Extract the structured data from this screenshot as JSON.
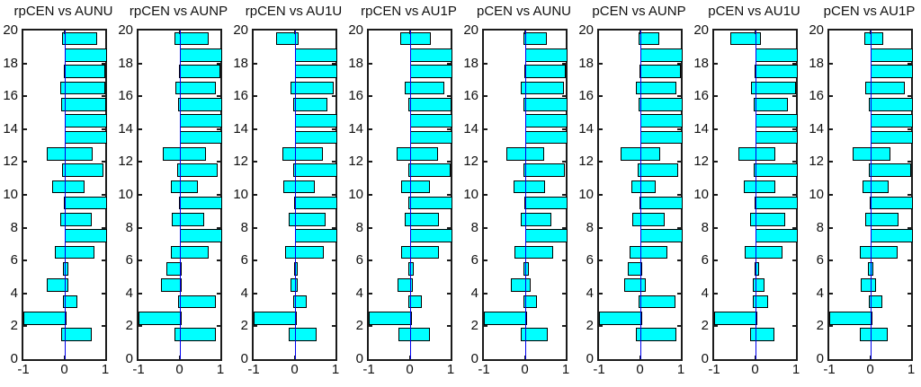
{
  "figure": {
    "background": "#ffffff",
    "bar_fill": "#00ffff",
    "bar_edge": "#000000",
    "zero_line_color": "#0000ee",
    "axis_color": "#1b1b1b"
  },
  "axes": {
    "xlim": [
      -1,
      1
    ],
    "ylim": [
      0,
      20
    ],
    "xticklabels": [
      "-1",
      "0",
      "1"
    ],
    "yticklabels": [
      "0",
      "2",
      "4",
      "6",
      "8",
      "10",
      "12",
      "14",
      "16",
      "18",
      "20"
    ],
    "grid": false,
    "legend": "none"
  },
  "chart_data": [
    {
      "type": "bar",
      "orientation": "horizontal",
      "title": "rpCEN vs AUNU",
      "xlabel": "",
      "ylabel": "",
      "xlim": [
        -1,
        1
      ],
      "ylim": [
        0,
        20
      ],
      "categories": [
        1.5,
        2.5,
        3.5,
        4.5,
        5.5,
        6.5,
        7.5,
        8.5,
        9.5,
        10.5,
        11.5,
        12.5,
        13.5,
        14.5,
        15.5,
        16.5,
        17.5,
        18.5,
        19.5
      ],
      "series": [
        {
          "name": "negative",
          "values": [
            -0.08,
            -1.0,
            -0.03,
            -0.42,
            -0.03,
            -0.22,
            0,
            -0.1,
            -0.02,
            -0.3,
            -0.05,
            -0.42,
            0,
            0,
            -0.07,
            -0.1,
            -0.02,
            0,
            -0.05
          ]
        },
        {
          "name": "positive",
          "values": [
            0.62,
            0,
            0.28,
            0.05,
            0.06,
            0.7,
            1.0,
            0.62,
            1.0,
            0.45,
            0.92,
            0.65,
            1.0,
            1.0,
            0.98,
            0.95,
            0.95,
            1.0,
            0.75
          ]
        }
      ]
    },
    {
      "type": "bar",
      "orientation": "horizontal",
      "title": "rpCEN vs AUNP",
      "xlabel": "",
      "ylabel": "",
      "xlim": [
        -1,
        1
      ],
      "ylim": [
        0,
        20
      ],
      "categories": [
        1.5,
        2.5,
        3.5,
        4.5,
        5.5,
        6.5,
        7.5,
        8.5,
        9.5,
        10.5,
        11.5,
        12.5,
        13.5,
        14.5,
        15.5,
        16.5,
        17.5,
        18.5,
        19.5
      ],
      "series": [
        {
          "name": "negative",
          "values": [
            -0.12,
            -1.0,
            -0.04,
            -0.45,
            -0.32,
            -0.2,
            0,
            -0.18,
            -0.02,
            -0.2,
            -0.05,
            -0.4,
            0,
            0,
            -0.04,
            -0.1,
            -0.02,
            0,
            -0.12
          ]
        },
        {
          "name": "positive",
          "values": [
            0.85,
            0,
            0.85,
            0.02,
            0.02,
            0.68,
            1.0,
            0.55,
            1.0,
            0.4,
            0.9,
            0.6,
            1.0,
            1.0,
            1.0,
            0.85,
            0.95,
            1.0,
            0.68
          ]
        }
      ]
    },
    {
      "type": "bar",
      "orientation": "horizontal",
      "title": "rpCEN vs AU1U",
      "xlabel": "",
      "ylabel": "",
      "xlim": [
        -1,
        1
      ],
      "ylim": [
        0,
        20
      ],
      "categories": [
        1.5,
        2.5,
        3.5,
        4.5,
        5.5,
        6.5,
        7.5,
        8.5,
        9.5,
        10.5,
        11.5,
        12.5,
        13.5,
        14.5,
        15.5,
        16.5,
        17.5,
        18.5,
        19.5
      ],
      "series": [
        {
          "name": "negative",
          "values": [
            -0.15,
            -1.0,
            -0.03,
            -0.1,
            -0.02,
            -0.22,
            0,
            -0.15,
            -0.02,
            -0.28,
            -0.03,
            -0.3,
            0,
            0,
            -0.03,
            -0.1,
            0,
            0,
            -0.45
          ]
        },
        {
          "name": "positive",
          "values": [
            0.5,
            0,
            0.25,
            0.03,
            0.04,
            0.68,
            1.0,
            0.72,
            1.0,
            0.45,
            1.0,
            0.65,
            1.0,
            1.0,
            0.75,
            0.92,
            1.0,
            1.0,
            0.05
          ]
        }
      ]
    },
    {
      "type": "bar",
      "orientation": "horizontal",
      "title": "rpCEN vs AU1P",
      "xlabel": "",
      "ylabel": "",
      "xlim": [
        -1,
        1
      ],
      "ylim": [
        0,
        20
      ],
      "categories": [
        1.5,
        2.5,
        3.5,
        4.5,
        5.5,
        6.5,
        7.5,
        8.5,
        9.5,
        10.5,
        11.5,
        12.5,
        13.5,
        14.5,
        15.5,
        16.5,
        17.5,
        18.5,
        19.5
      ],
      "series": [
        {
          "name": "negative",
          "values": [
            -0.28,
            -1.0,
            -0.03,
            -0.3,
            -0.04,
            -0.2,
            0,
            -0.12,
            -0.03,
            -0.2,
            -0.03,
            -0.32,
            0,
            0,
            -0.04,
            -0.12,
            0,
            0,
            -0.22
          ]
        },
        {
          "name": "positive",
          "values": [
            0.45,
            0,
            0.25,
            0.03,
            0.05,
            0.68,
            1.0,
            0.68,
            1.0,
            0.45,
            0.95,
            0.65,
            1.0,
            1.0,
            0.98,
            0.8,
            1.0,
            1.0,
            0.48
          ]
        }
      ]
    },
    {
      "type": "bar",
      "orientation": "horizontal",
      "title": "pCEN vs AUNU",
      "xlabel": "",
      "ylabel": "",
      "xlim": [
        -1,
        1
      ],
      "ylim": [
        0,
        20
      ],
      "categories": [
        1.5,
        2.5,
        3.5,
        4.5,
        5.5,
        6.5,
        7.5,
        8.5,
        9.5,
        10.5,
        11.5,
        12.5,
        13.5,
        14.5,
        15.5,
        16.5,
        17.5,
        18.5,
        19.5
      ],
      "series": [
        {
          "name": "negative",
          "values": [
            -0.1,
            -1.0,
            -0.03,
            -0.35,
            -0.03,
            -0.25,
            0,
            -0.1,
            -0.02,
            -0.28,
            -0.04,
            -0.45,
            0,
            0,
            -0.04,
            -0.1,
            -0.02,
            0,
            -0.03
          ]
        },
        {
          "name": "positive",
          "values": [
            0.52,
            0,
            0.25,
            0.1,
            0.06,
            0.65,
            1.0,
            0.6,
            1.0,
            0.45,
            0.93,
            0.42,
            1.0,
            1.0,
            1.0,
            0.92,
            0.95,
            1.0,
            0.5
          ]
        }
      ]
    },
    {
      "type": "bar",
      "orientation": "horizontal",
      "title": "pCEN vs AUNP",
      "xlabel": "",
      "ylabel": "",
      "xlim": [
        -1,
        1
      ],
      "ylim": [
        0,
        20
      ],
      "categories": [
        1.5,
        2.5,
        3.5,
        4.5,
        5.5,
        6.5,
        7.5,
        8.5,
        9.5,
        10.5,
        11.5,
        12.5,
        13.5,
        14.5,
        15.5,
        16.5,
        17.5,
        18.5,
        19.5
      ],
      "series": [
        {
          "name": "negative",
          "values": [
            -0.1,
            -1.0,
            -0.04,
            -0.38,
            -0.3,
            -0.25,
            0,
            -0.18,
            -0.02,
            -0.2,
            -0.05,
            -0.48,
            0,
            0,
            -0.04,
            -0.1,
            -0.02,
            0,
            -0.04
          ]
        },
        {
          "name": "positive",
          "values": [
            0.85,
            0,
            0.82,
            0.1,
            0.02,
            0.62,
            1.0,
            0.55,
            1.0,
            0.35,
            0.88,
            0.45,
            1.0,
            1.0,
            1.0,
            0.85,
            0.95,
            1.0,
            0.42
          ]
        }
      ]
    },
    {
      "type": "bar",
      "orientation": "horizontal",
      "title": "pCEN vs AU1U",
      "xlabel": "",
      "ylabel": "",
      "xlim": [
        -1,
        1
      ],
      "ylim": [
        0,
        20
      ],
      "categories": [
        1.5,
        2.5,
        3.5,
        4.5,
        5.5,
        6.5,
        7.5,
        8.5,
        9.5,
        10.5,
        11.5,
        12.5,
        13.5,
        14.5,
        15.5,
        16.5,
        17.5,
        18.5,
        19.5
      ],
      "series": [
        {
          "name": "negative",
          "values": [
            -0.12,
            -1.0,
            -0.05,
            -0.05,
            -0.02,
            -0.25,
            0,
            -0.12,
            -0.02,
            -0.28,
            -0.03,
            -0.4,
            0,
            0,
            -0.04,
            -0.1,
            -0.02,
            0,
            -0.6
          ]
        },
        {
          "name": "positive",
          "values": [
            0.42,
            0,
            0.27,
            0.18,
            0.05,
            0.62,
            1.0,
            0.7,
            1.0,
            0.45,
            1.0,
            0.45,
            1.0,
            1.0,
            0.75,
            0.95,
            1.0,
            1.0,
            0.1
          ]
        }
      ]
    },
    {
      "type": "bar",
      "orientation": "horizontal",
      "title": "pCEN vs AU1P",
      "xlabel": "",
      "ylabel": "",
      "xlim": [
        -1,
        1
      ],
      "ylim": [
        0,
        20
      ],
      "categories": [
        1.5,
        2.5,
        3.5,
        4.5,
        5.5,
        6.5,
        7.5,
        8.5,
        9.5,
        10.5,
        11.5,
        12.5,
        13.5,
        14.5,
        15.5,
        16.5,
        17.5,
        18.5,
        19.5
      ],
      "series": [
        {
          "name": "negative",
          "values": [
            -0.25,
            -1.0,
            -0.03,
            -0.22,
            -0.05,
            -0.25,
            0,
            -0.12,
            -0.02,
            -0.18,
            -0.04,
            -0.42,
            0,
            0,
            -0.04,
            -0.12,
            0,
            0,
            -0.15
          ]
        },
        {
          "name": "positive",
          "values": [
            0.38,
            0,
            0.25,
            0.1,
            0.04,
            0.62,
            1.0,
            0.65,
            1.0,
            0.4,
            0.95,
            0.45,
            1.0,
            1.0,
            1.0,
            0.8,
            1.0,
            1.0,
            0.28
          ]
        }
      ]
    }
  ]
}
